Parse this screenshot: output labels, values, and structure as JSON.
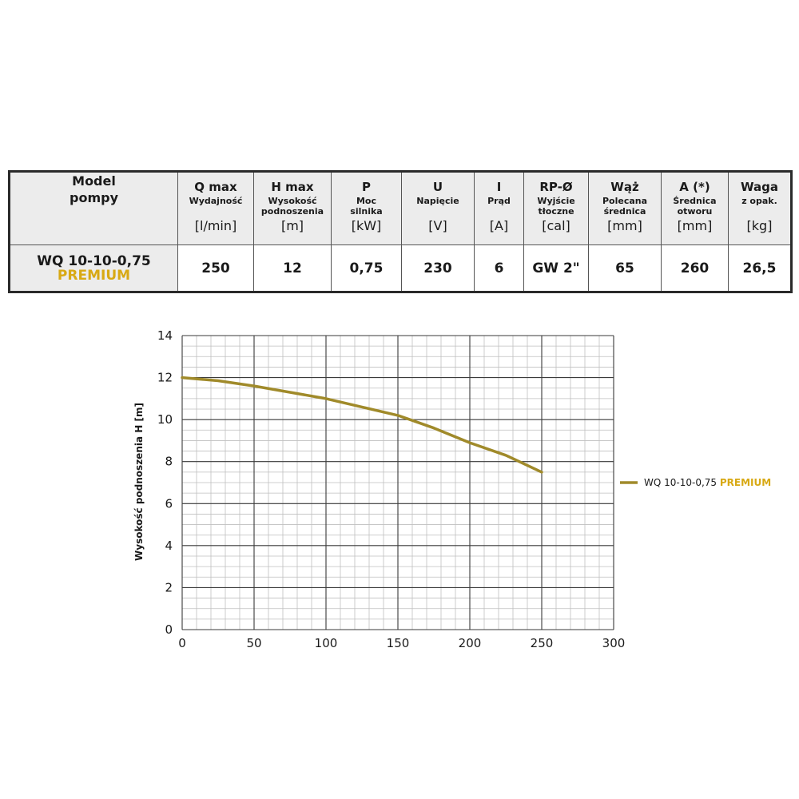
{
  "table": {
    "headers": [
      {
        "title": "Model\npompy"
      },
      {
        "title": "Q max",
        "sub": "Wydajność",
        "unit": "[l/min]"
      },
      {
        "title": "H max",
        "sub": "Wysokość\npodnoszenia",
        "unit": "[m]"
      },
      {
        "title": "P",
        "sub": "Moc\nsilnika",
        "unit": "[kW]"
      },
      {
        "title": "U",
        "sub": "Napięcie",
        "unit": "[V]"
      },
      {
        "title": "I",
        "sub": "Prąd",
        "unit": "[A]"
      },
      {
        "title": "RP-Ø",
        "sub": "Wyjście\ntłoczne",
        "unit": "[cal]"
      },
      {
        "title": "Wąż",
        "sub": "Polecana\nśrednica",
        "unit": "[mm]"
      },
      {
        "title": "A (*)",
        "sub": "Średnica\notworu",
        "unit": "[mm]"
      },
      {
        "title": "Waga",
        "sub": "z opak.",
        "unit": "[kg]"
      }
    ],
    "row": {
      "model": "WQ 10-10-0,75",
      "model_suffix": "PREMIUM",
      "values": [
        "250",
        "12",
        "0,75",
        "230",
        "6",
        "GW 2\"",
        "65",
        "260",
        "26,5"
      ]
    }
  },
  "chart_data": {
    "type": "line",
    "title": "",
    "xlabel": "",
    "ylabel": "Wysokość podnoszenia H [m]",
    "xlim": [
      0,
      300
    ],
    "ylim": [
      0,
      14
    ],
    "x_ticks": [
      0,
      50,
      100,
      150,
      200,
      250,
      300
    ],
    "y_ticks": [
      0,
      2,
      4,
      6,
      8,
      10,
      12,
      14
    ],
    "grid": true,
    "legend_position": "right",
    "series": [
      {
        "name": "WQ 10-10-0,75",
        "name_suffix": "PREMIUM",
        "color": "#a08a2a",
        "x": [
          0,
          25,
          50,
          75,
          100,
          125,
          150,
          175,
          200,
          225,
          250
        ],
        "y": [
          12.0,
          11.85,
          11.6,
          11.3,
          11.0,
          10.6,
          10.2,
          9.6,
          8.9,
          8.3,
          7.5
        ]
      }
    ]
  },
  "colors": {
    "accent": "#d8a914",
    "curve": "#a08a2a",
    "header_bg": "#ececec"
  }
}
